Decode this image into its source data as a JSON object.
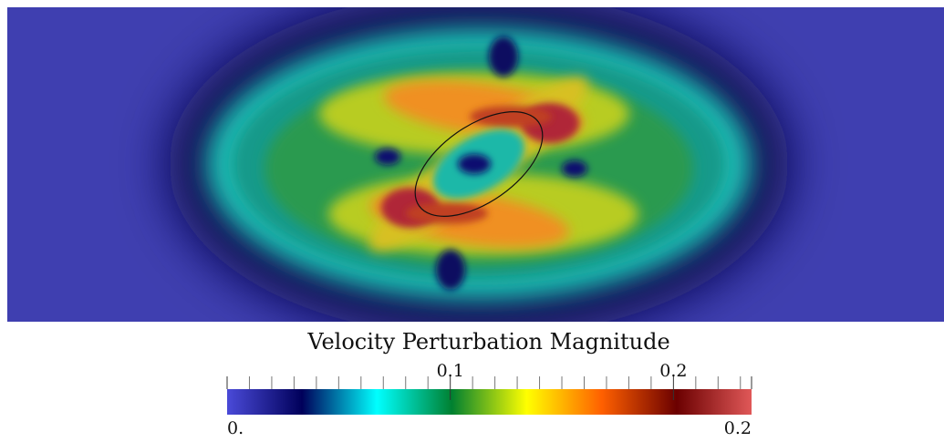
{
  "chart_data": {
    "type": "colorbar",
    "title": "Velocity Perturbation Magnitude",
    "clim": [
      {
        "value": 0,
        "label": "0."
      },
      {
        "value": 0.235,
        "label": "0.2"
      }
    ],
    "ticks": [
      0.1,
      0.2
    ],
    "minor_ticks": [
      0.01,
      0.02,
      0.03,
      0.04,
      0.05,
      0.06,
      0.07,
      0.08,
      0.09,
      0.11,
      0.12,
      0.13,
      0.14,
      0.15,
      0.16,
      0.17,
      0.18,
      0.19,
      0.21,
      0.22,
      0.23
    ],
    "colors": [
      "#4a4ad8",
      "#00005a",
      "#00ffff",
      "#008030",
      "#ffff00",
      "#ff6000",
      "#6b0000",
      "#e05858"
    ]
  }
}
